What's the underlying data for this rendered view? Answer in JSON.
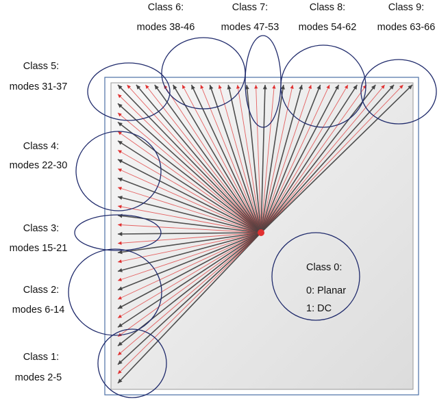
{
  "class_labels": [
    {
      "id": "class-9",
      "line1": "Class 9:",
      "line2": "modes 63-66"
    },
    {
      "id": "class-8",
      "line1": "Class 8:",
      "line2": "modes 54-62"
    },
    {
      "id": "class-7",
      "line1": "Class 7:",
      "line2": "modes 47-53"
    },
    {
      "id": "class-6",
      "line1": "Class 6:",
      "line2": "modes 38-46"
    },
    {
      "id": "class-5",
      "line1": "Class 5:",
      "line2": "modes 31-37"
    },
    {
      "id": "class-4",
      "line1": "Class 4:",
      "line2": "modes 22-30"
    },
    {
      "id": "class-3",
      "line1": "Class 3:",
      "line2": "modes 15-21"
    },
    {
      "id": "class-2",
      "line1": "Class 2:",
      "line2": "modes 6-14"
    },
    {
      "id": "class-1",
      "line1": "Class 1:",
      "line2": "modes 2-5"
    }
  ],
  "class0": {
    "title": "Class 0:",
    "line1": "0: Planar",
    "line2": "1: DC"
  },
  "angular_modes": {
    "first": 2,
    "last": 66,
    "count": 65
  },
  "colors": {
    "even_mode_arrow": "#454545",
    "odd_mode_arrow": "#e03030",
    "class_ellipse": "#1f2a6b",
    "block_border": "#4a6fa5"
  }
}
